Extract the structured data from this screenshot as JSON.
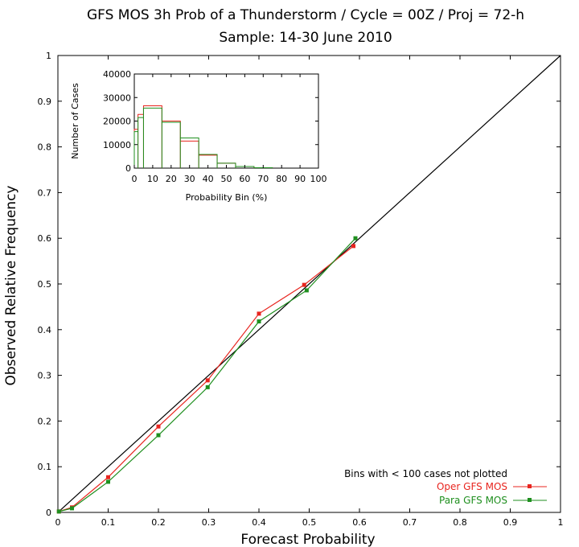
{
  "chart_data": [
    {
      "type": "line",
      "title": "GFS MOS 3h Prob of a Thunderstorm / Cycle = 00Z / Proj = 72-h",
      "subtitle": "Sample: 14-30 June 2010",
      "xlabel": "Forecast Probability",
      "ylabel": "Observed Relative Frequency",
      "xlim": [
        0,
        1
      ],
      "ylim": [
        0,
        1
      ],
      "x_ticks": [
        "0",
        "0.1",
        "0.2",
        "0.3",
        "0.4",
        "0.5",
        "0.6",
        "0.7",
        "0.8",
        "0.9",
        "1"
      ],
      "y_ticks": [
        "0",
        "0.1",
        "0.2",
        "0.3",
        "0.4",
        "0.5",
        "0.6",
        "0.7",
        "0.8",
        "0.9",
        "1"
      ],
      "grid": false,
      "legend_position": "bottom-right",
      "annotation": "Bins with < 100 cases not plotted",
      "series": [
        {
          "name": "Oper GFS MOS",
          "color": "#e8251f",
          "x": [
            0.002,
            0.028,
            0.1,
            0.2,
            0.298,
            0.4,
            0.49,
            0.588
          ],
          "y": [
            0.002,
            0.011,
            0.077,
            0.188,
            0.289,
            0.435,
            0.498,
            0.583
          ]
        },
        {
          "name": "Para GFS MOS",
          "color": "#1f8f1f",
          "x": [
            0.002,
            0.028,
            0.1,
            0.2,
            0.298,
            0.4,
            0.495,
            0.592
          ],
          "y": [
            0.002,
            0.009,
            0.067,
            0.169,
            0.274,
            0.418,
            0.486,
            0.6
          ]
        }
      ]
    },
    {
      "type": "bar",
      "xlabel": "Probability Bin (%)",
      "ylabel": "Number of Cases",
      "xlim": [
        0,
        100
      ],
      "ylim": [
        0,
        40000
      ],
      "x_ticks": [
        "0",
        "10",
        "20",
        "30",
        "40",
        "50",
        "60",
        "70",
        "80",
        "90",
        "100"
      ],
      "y_ticks": [
        "0",
        "10000",
        "20000",
        "30000",
        "40000"
      ],
      "bin_edges": [
        0,
        2,
        5,
        15,
        25,
        35,
        45,
        55,
        65,
        75
      ],
      "series": [
        {
          "name": "Oper GFS MOS",
          "color": "#e8251f",
          "values": [
            16500,
            22800,
            26500,
            20000,
            11500,
            5500,
            2100,
            700,
            150
          ]
        },
        {
          "name": "Para GFS MOS",
          "color": "#1f8f1f",
          "values": [
            15500,
            21500,
            25500,
            19500,
            12800,
            5800,
            2100,
            700,
            150
          ]
        }
      ]
    }
  ]
}
